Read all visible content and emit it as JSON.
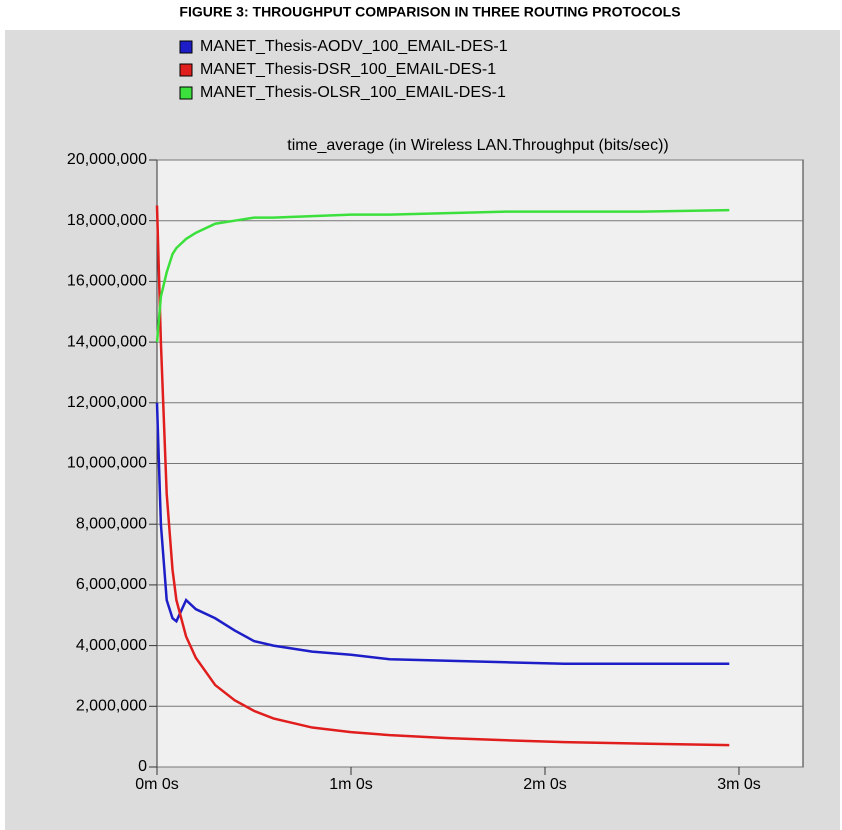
{
  "chart_data": {
    "type": "line",
    "title": "FIGURE 3: THROUGHPUT COMPARISON IN THREE ROUTING PROTOCOLS",
    "subtitle": "time_average (in Wireless LAN.Throughput (bits/sec))",
    "x": [
      0,
      0.02,
      0.05,
      0.08,
      0.1,
      0.15,
      0.2,
      0.3,
      0.4,
      0.5,
      0.6,
      0.8,
      1.0,
      1.2,
      1.5,
      1.8,
      2.1,
      2.5,
      2.95
    ],
    "series": [
      {
        "name": "MANET_Thesis-AODV_100_EMAIL-DES-1",
        "color": "#1e1ec8",
        "values": [
          12000000,
          8000000,
          5500000,
          4900000,
          4800000,
          5500000,
          5200000,
          4900000,
          4500000,
          4150000,
          4000000,
          3800000,
          3700000,
          3550000,
          3500000,
          3450000,
          3400000,
          3400000,
          3400000
        ]
      },
      {
        "name": "MANET_Thesis-DSR_100_EMAIL-DES-1",
        "color": "#e01e1e",
        "values": [
          18500000,
          14000000,
          9000000,
          6500000,
          5500000,
          4300000,
          3600000,
          2700000,
          2200000,
          1850000,
          1600000,
          1300000,
          1150000,
          1050000,
          950000,
          880000,
          820000,
          770000,
          720000
        ]
      },
      {
        "name": "MANET_Thesis-OLSR_100_EMAIL-DES-1",
        "color": "#3ce03c",
        "values": [
          14000000,
          15500000,
          16300000,
          16900000,
          17100000,
          17400000,
          17600000,
          17900000,
          18000000,
          18100000,
          18100000,
          18150000,
          18200000,
          18200000,
          18250000,
          18300000,
          18300000,
          18300000,
          18350000
        ]
      }
    ],
    "xlim": [
      0,
      3.33
    ],
    "xticks": [
      {
        "value": 0,
        "label": "0m 0s"
      },
      {
        "value": 1,
        "label": "1m 0s"
      },
      {
        "value": 2,
        "label": "2m 0s"
      },
      {
        "value": 3,
        "label": "3m 0s"
      }
    ],
    "ylim": [
      0,
      20000000
    ],
    "yticks": [
      {
        "value": 0,
        "label": "0"
      },
      {
        "value": 2000000,
        "label": "2,000,000"
      },
      {
        "value": 4000000,
        "label": "4,000,000"
      },
      {
        "value": 6000000,
        "label": "6,000,000"
      },
      {
        "value": 8000000,
        "label": "8,000,000"
      },
      {
        "value": 10000000,
        "label": "10,000,000"
      },
      {
        "value": 12000000,
        "label": "12,000,000"
      },
      {
        "value": 14000000,
        "label": "14,000,000"
      },
      {
        "value": 16000000,
        "label": "16,000,000"
      },
      {
        "value": 18000000,
        "label": "18,000,000"
      },
      {
        "value": 20000000,
        "label": "20,000,000"
      }
    ],
    "grid": true
  }
}
